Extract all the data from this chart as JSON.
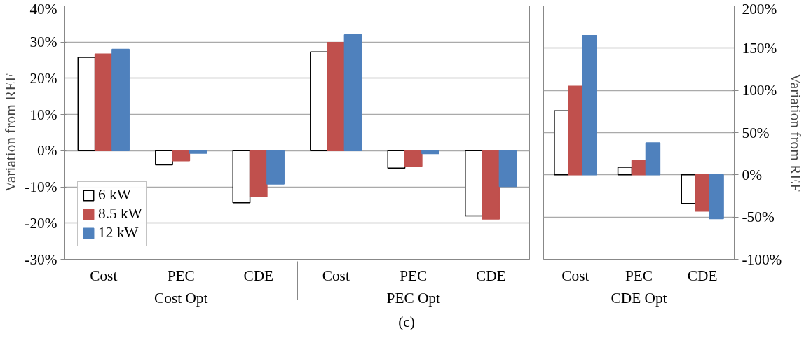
{
  "chart_data": [
    {
      "type": "bar",
      "ylabel": "Variation from REF",
      "categories": [
        "Cost",
        "PEC",
        "CDE",
        "Cost",
        "PEC",
        "CDE"
      ],
      "annotations": [
        "Cost Opt",
        "PEC Opt",
        "(c)"
      ],
      "series": [
        {
          "name": "6 kW",
          "color": "#ffffff",
          "values": [
            25.8,
            -3.9,
            -14.4,
            27.3,
            -4.8,
            -18.0
          ]
        },
        {
          "name": "8.5 kW",
          "color": "#c0504d",
          "values": [
            26.7,
            -2.8,
            -12.7,
            29.9,
            -4.3,
            -18.9
          ]
        },
        {
          "name": "12 kW",
          "color": "#4f81bd",
          "values": [
            28.0,
            -0.7,
            -9.2,
            32.0,
            -0.8,
            -9.9
          ]
        }
      ],
      "ylim": [
        -30,
        40
      ],
      "yticks": [
        {
          "value": -30,
          "label": "-30%"
        },
        {
          "value": -20,
          "label": "-20%"
        },
        {
          "value": -10,
          "label": "-10%"
        },
        {
          "value": 0,
          "label": "0%"
        },
        {
          "value": 10,
          "label": "10%"
        },
        {
          "value": 20,
          "label": "20%"
        },
        {
          "value": 30,
          "label": "30%"
        },
        {
          "value": 40,
          "label": "40%"
        }
      ],
      "grid": "y",
      "legend": "bottom left"
    },
    {
      "type": "bar",
      "ylabel": "Variation from REF",
      "categories": [
        "Cost",
        "PEC",
        "CDE"
      ],
      "annotations": [
        "CDE Opt"
      ],
      "series": [
        {
          "color": "#ffffff",
          "values": [
            76,
            9,
            -34
          ]
        },
        {
          "color": "#c0504d",
          "values": [
            105,
            17,
            -43
          ]
        },
        {
          "color": "#4f81bd",
          "values": [
            165,
            38,
            -52
          ]
        }
      ],
      "ylim": [
        -100,
        200
      ],
      "yticks": [
        {
          "value": -100,
          "label": "-100%"
        },
        {
          "value": -50,
          "label": "-50%"
        },
        {
          "value": 0,
          "label": "0%"
        },
        {
          "value": 50,
          "label": "50%"
        },
        {
          "value": 100,
          "label": "100%"
        },
        {
          "value": 150,
          "label": "150%"
        },
        {
          "value": 200,
          "label": "200%"
        }
      ],
      "grid": "y",
      "legend": false
    }
  ]
}
